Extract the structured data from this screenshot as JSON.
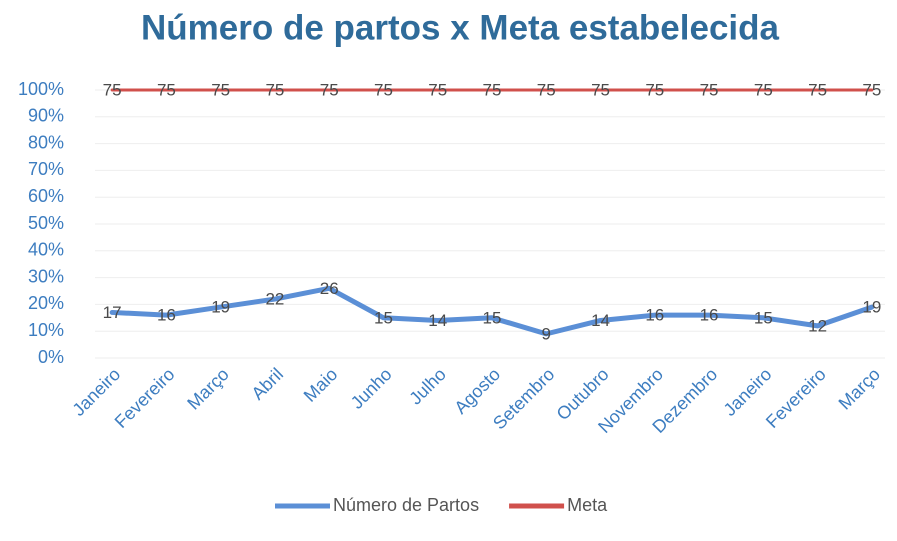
{
  "chart_data": {
    "type": "line",
    "title": "Número de partos x Meta estabelecida",
    "categories": [
      "Janeiro",
      "Fevereiro",
      "Março",
      "Abril",
      "Maio",
      "Junho",
      "Julho",
      "Agosto",
      "Setembro",
      "Outubro",
      "Novembro",
      "Dezembro",
      "Janeiro",
      "Fevereiro",
      "Março"
    ],
    "series": [
      {
        "name": "Número de Partos",
        "color": "#5b8fd6",
        "values": [
          17,
          16,
          19,
          22,
          26,
          15,
          14,
          15,
          9,
          14,
          16,
          16,
          15,
          12,
          19
        ]
      },
      {
        "name": "Meta",
        "color": "#d0504c",
        "axis": "y2",
        "values": [
          75,
          75,
          75,
          75,
          75,
          75,
          75,
          75,
          75,
          75,
          75,
          75,
          75,
          75,
          75
        ]
      }
    ],
    "ylim": [
      0,
      100
    ],
    "yticks": [
      {
        "value": 0,
        "label": "0%"
      },
      {
        "value": 10,
        "label": "10%"
      },
      {
        "value": 20,
        "label": "20%"
      },
      {
        "value": 30,
        "label": "30%"
      },
      {
        "value": 40,
        "label": "40%"
      },
      {
        "value": 50,
        "label": "50%"
      },
      {
        "value": 60,
        "label": "60%"
      },
      {
        "value": 70,
        "label": "70%"
      },
      {
        "value": 80,
        "label": "80%"
      },
      {
        "value": 90,
        "label": "90%"
      },
      {
        "value": 100,
        "label": "100%"
      }
    ],
    "y2lim": [
      0,
      75
    ],
    "grid": true,
    "legend": "bottom"
  }
}
